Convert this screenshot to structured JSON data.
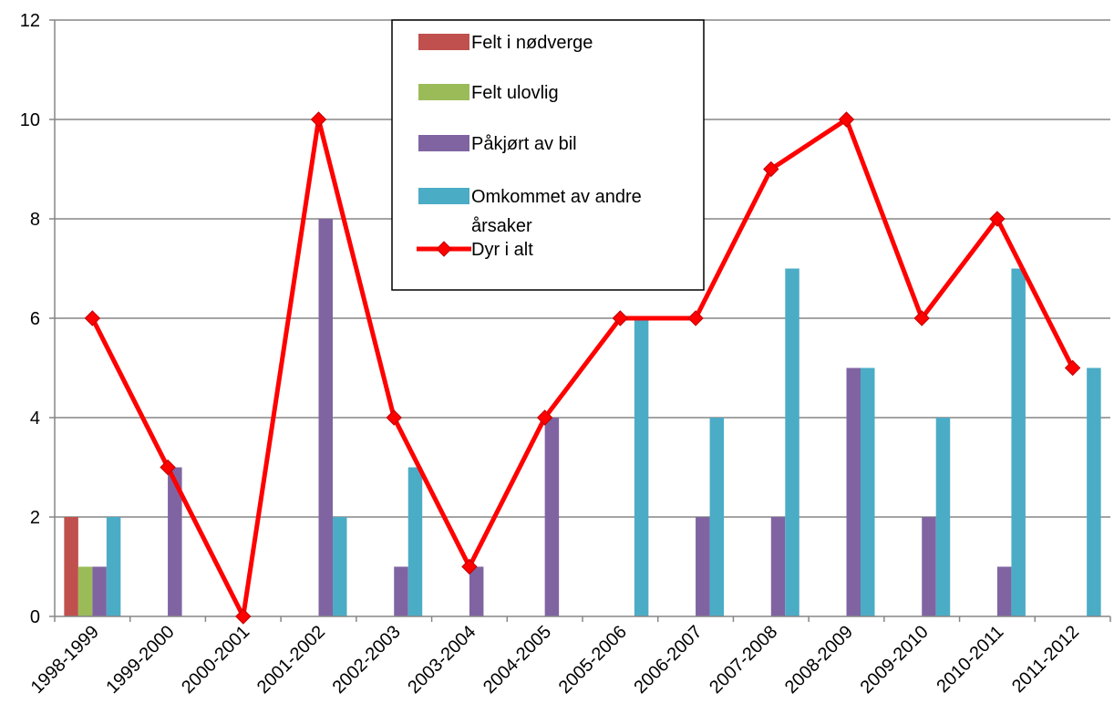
{
  "chart_data": {
    "type": "bar",
    "categories": [
      "1998-1999",
      "1999-2000",
      "2000-2001",
      "2001-2002",
      "2002-2003",
      "2003-2004",
      "2004-2005",
      "2005-2006",
      "2006-2007",
      "2007-2008",
      "2008-2009",
      "2009-2010",
      "2010-2011",
      "2011-2012"
    ],
    "series": [
      {
        "name": "Felt i nødverge",
        "type": "bar",
        "color": "#c0504d",
        "values": [
          2,
          0,
          0,
          0,
          0,
          0,
          0,
          0,
          0,
          0,
          0,
          0,
          0,
          0
        ]
      },
      {
        "name": "Felt ulovlig",
        "type": "bar",
        "color": "#9bbb59",
        "values": [
          1,
          0,
          0,
          0,
          0,
          0,
          0,
          0,
          0,
          0,
          0,
          0,
          0,
          0
        ]
      },
      {
        "name": "Påkjørt av bil",
        "type": "bar",
        "color": "#8064a2",
        "values": [
          1,
          3,
          0,
          8,
          1,
          1,
          4,
          0,
          2,
          2,
          5,
          2,
          1,
          0
        ]
      },
      {
        "name": "Omkommet av andre årsaker",
        "type": "bar",
        "color": "#4bacc6",
        "values": [
          2,
          0,
          0,
          2,
          3,
          0,
          0,
          6,
          4,
          7,
          5,
          4,
          7,
          5
        ]
      },
      {
        "name": "Dyr i alt",
        "type": "line",
        "color": "#ff0000",
        "values": [
          6,
          3,
          0,
          10,
          4,
          1,
          4,
          6,
          6,
          9,
          10,
          6,
          8,
          5
        ]
      }
    ],
    "ylim": [
      0,
      12
    ],
    "yticks": [
      0,
      2,
      4,
      6,
      8,
      10,
      12
    ],
    "grid": true,
    "legend_position": "top-center"
  }
}
